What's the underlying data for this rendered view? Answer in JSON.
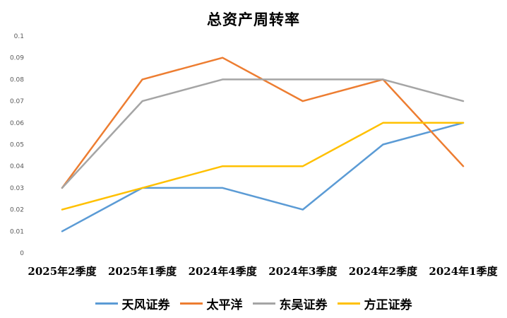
{
  "chart": {
    "title": "总资产周转率"
  },
  "chart_data": {
    "type": "line",
    "title": "总资产周转率",
    "xlabel": "",
    "ylabel": "",
    "ylim": [
      0,
      0.1
    ],
    "grid": false,
    "legend_position": "bottom",
    "y_ticks": [
      "0.1",
      "0.09",
      "0.08",
      "0.07",
      "0.06",
      "0.05",
      "0.04",
      "0.03",
      "0.02",
      "0.01",
      "0"
    ],
    "categories": [
      "2025年2季度",
      "2025年1季度",
      "2024年4季度",
      "2024年3季度",
      "2024年2季度",
      "2024年1季度"
    ],
    "series": [
      {
        "name": "天风证券",
        "color": "#5B9BD5",
        "values": [
          0.01,
          0.03,
          0.03,
          0.02,
          0.05,
          0.06
        ]
      },
      {
        "name": "太平洋",
        "color": "#ED7D31",
        "values": [
          0.03,
          0.08,
          0.09,
          0.07,
          0.08,
          0.04
        ]
      },
      {
        "name": "东吴证券",
        "color": "#A5A5A5",
        "values": [
          0.03,
          0.07,
          0.08,
          0.08,
          0.08,
          0.07
        ]
      },
      {
        "name": "方正证券",
        "color": "#FFC000",
        "values": [
          0.02,
          0.03,
          0.04,
          0.04,
          0.06,
          0.06
        ]
      }
    ]
  }
}
